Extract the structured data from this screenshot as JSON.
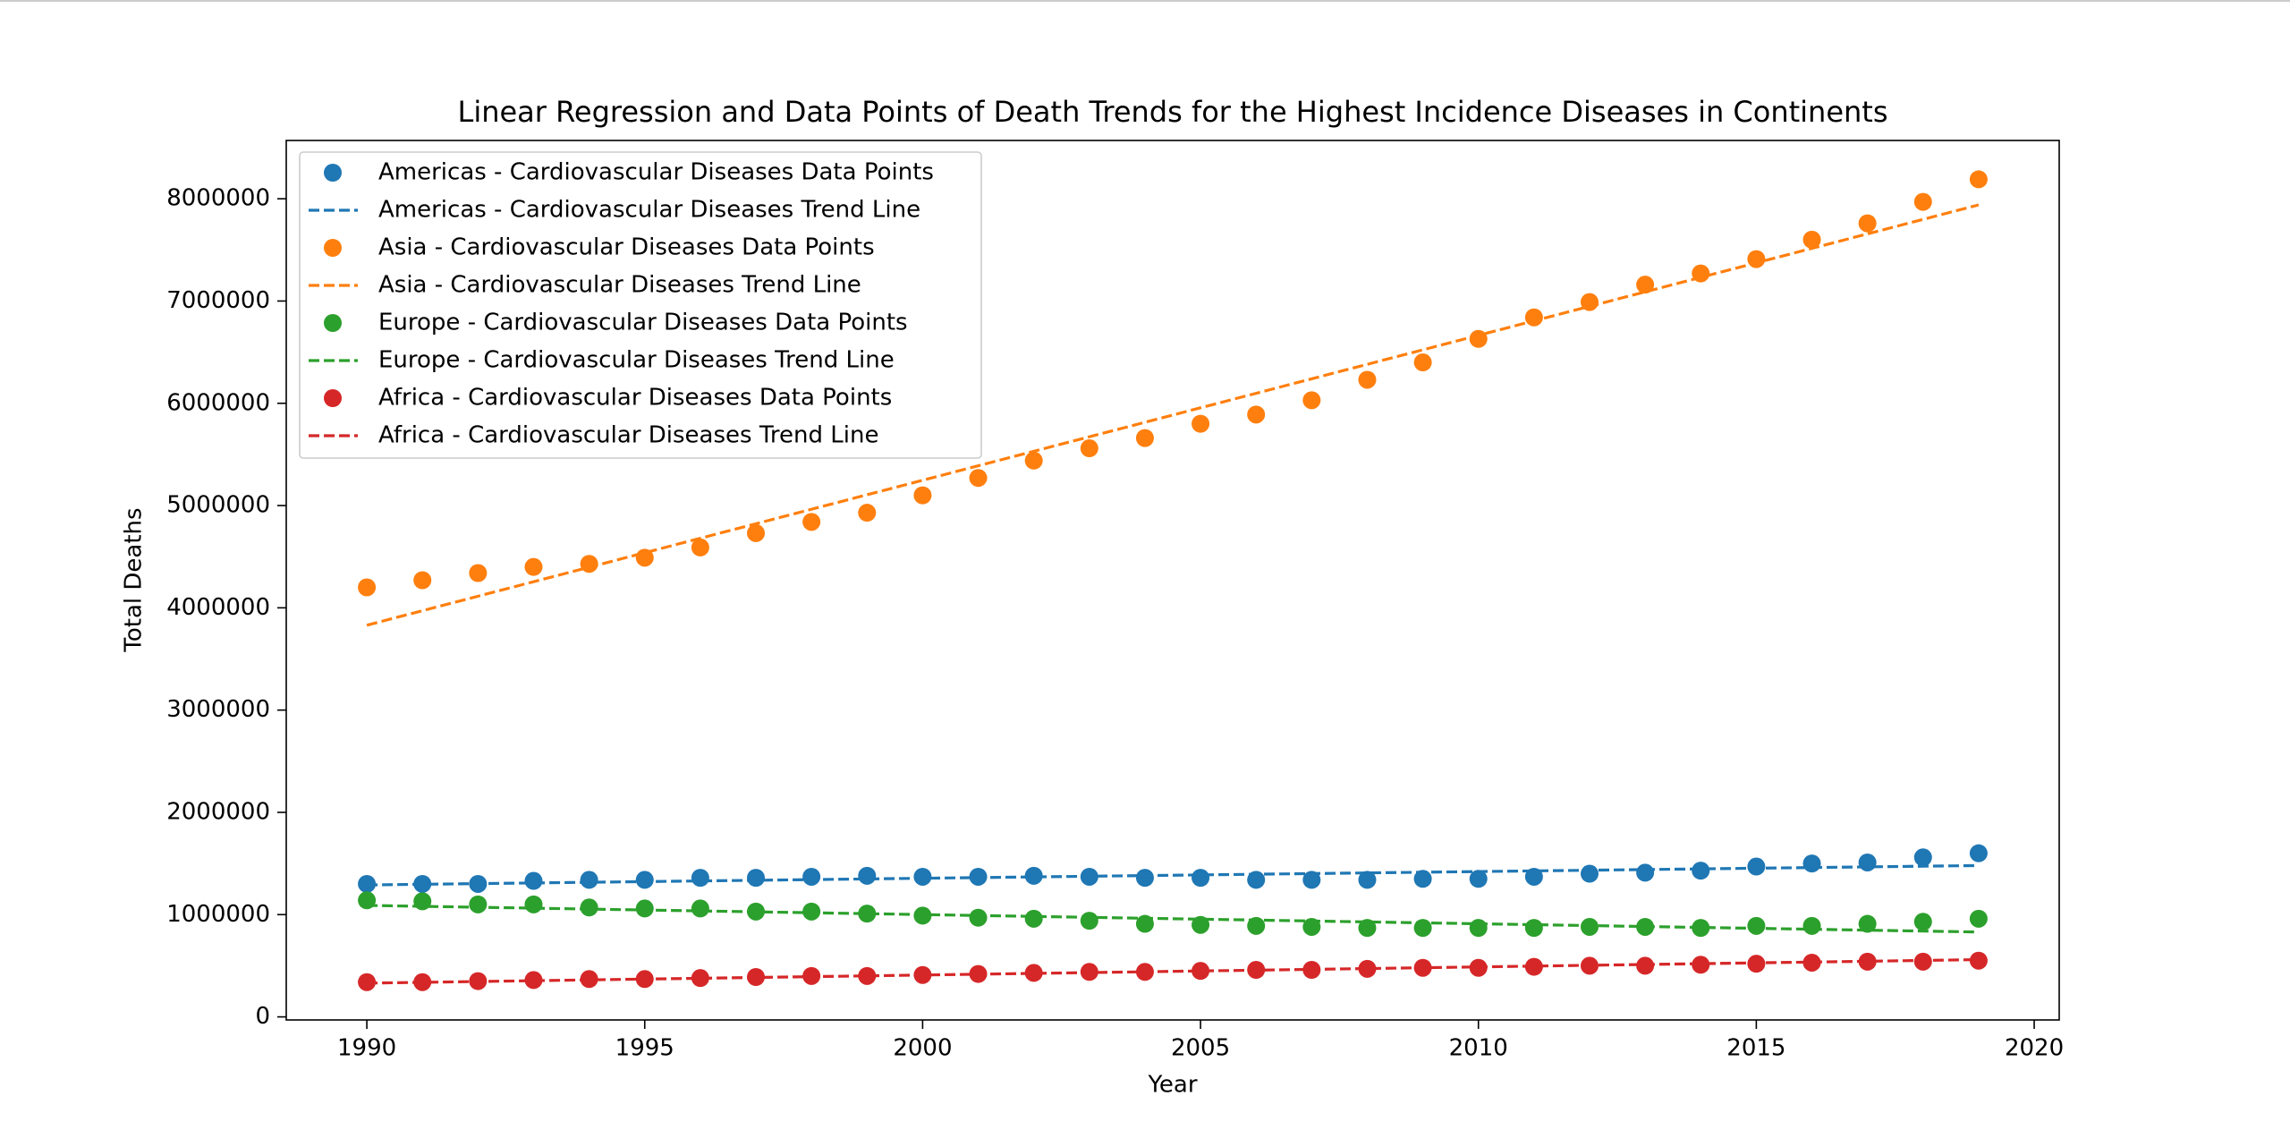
{
  "chart_data": {
    "type": "scatter",
    "title": "Linear Regression and Data Points of Death Trends for the Highest Incidence Diseases in Continents",
    "x_label": "Year",
    "y_label": "Total Deaths",
    "x": [
      1990,
      1991,
      1992,
      1993,
      1994,
      1995,
      1996,
      1997,
      1998,
      1999,
      2000,
      2001,
      2002,
      2003,
      2004,
      2005,
      2006,
      2007,
      2008,
      2009,
      2010,
      2011,
      2012,
      2013,
      2014,
      2015,
      2016,
      2017,
      2018,
      2019
    ],
    "xlim": [
      1988.55,
      2020.45
    ],
    "xticks": [
      1990,
      1995,
      2000,
      2005,
      2010,
      2015,
      2020
    ],
    "ylim": [
      -30000,
      8570000
    ],
    "yticks": [
      0,
      1000000,
      2000000,
      3000000,
      4000000,
      5000000,
      6000000,
      7000000,
      8000000
    ],
    "legend": "upper left",
    "series": [
      {
        "name": "Americas - Cardiovascular Diseases Data Points",
        "color": "#1f77b4",
        "style": "markers",
        "values": [
          1300000,
          1300000,
          1300000,
          1330000,
          1340000,
          1340000,
          1360000,
          1360000,
          1370000,
          1380000,
          1370000,
          1370000,
          1380000,
          1370000,
          1360000,
          1360000,
          1340000,
          1340000,
          1340000,
          1350000,
          1350000,
          1370000,
          1400000,
          1410000,
          1430000,
          1470000,
          1500000,
          1510000,
          1560000,
          1600000
        ]
      },
      {
        "name": "Americas - Cardiovascular Diseases Trend Line",
        "color": "#1f77b4",
        "style": "dashed",
        "x": [
          1990,
          2019
        ],
        "values": [
          1290000,
          1480000
        ]
      },
      {
        "name": "Asia - Cardiovascular Diseases Data Points",
        "color": "#ff7f0e",
        "style": "markers",
        "values": [
          4200000,
          4270000,
          4340000,
          4400000,
          4430000,
          4490000,
          4590000,
          4730000,
          4840000,
          4930000,
          5100000,
          5270000,
          5440000,
          5560000,
          5660000,
          5800000,
          5890000,
          6030000,
          6230000,
          6400000,
          6630000,
          6840000,
          6990000,
          7160000,
          7270000,
          7410000,
          7600000,
          7760000,
          7970000,
          8190000
        ]
      },
      {
        "name": "Asia - Cardiovascular Diseases Trend Line",
        "color": "#ff7f0e",
        "style": "dashed",
        "x": [
          1990,
          2019
        ],
        "values": [
          3830000,
          7940000
        ]
      },
      {
        "name": "Europe - Cardiovascular Diseases Data Points",
        "color": "#2ca02c",
        "style": "markers",
        "values": [
          1140000,
          1130000,
          1100000,
          1100000,
          1070000,
          1060000,
          1060000,
          1030000,
          1030000,
          1010000,
          990000,
          970000,
          960000,
          940000,
          910000,
          900000,
          890000,
          880000,
          870000,
          870000,
          870000,
          870000,
          880000,
          880000,
          870000,
          890000,
          890000,
          910000,
          930000,
          960000
        ]
      },
      {
        "name": "Europe - Cardiovascular Diseases Trend Line",
        "color": "#2ca02c",
        "style": "dashed",
        "x": [
          1990,
          2019
        ],
        "values": [
          1090000,
          830000
        ]
      },
      {
        "name": "Africa - Cardiovascular Diseases Data Points",
        "color": "#d62728",
        "style": "markers",
        "values": [
          340000,
          340000,
          350000,
          360000,
          370000,
          370000,
          380000,
          390000,
          400000,
          400000,
          410000,
          420000,
          430000,
          440000,
          440000,
          450000,
          460000,
          460000,
          470000,
          480000,
          480000,
          490000,
          500000,
          500000,
          510000,
          520000,
          530000,
          540000,
          540000,
          550000
        ]
      },
      {
        "name": "Africa - Cardiovascular Diseases Trend Line",
        "color": "#d62728",
        "style": "dashed",
        "x": [
          1990,
          2019
        ],
        "values": [
          330000,
          560000
        ]
      }
    ]
  }
}
